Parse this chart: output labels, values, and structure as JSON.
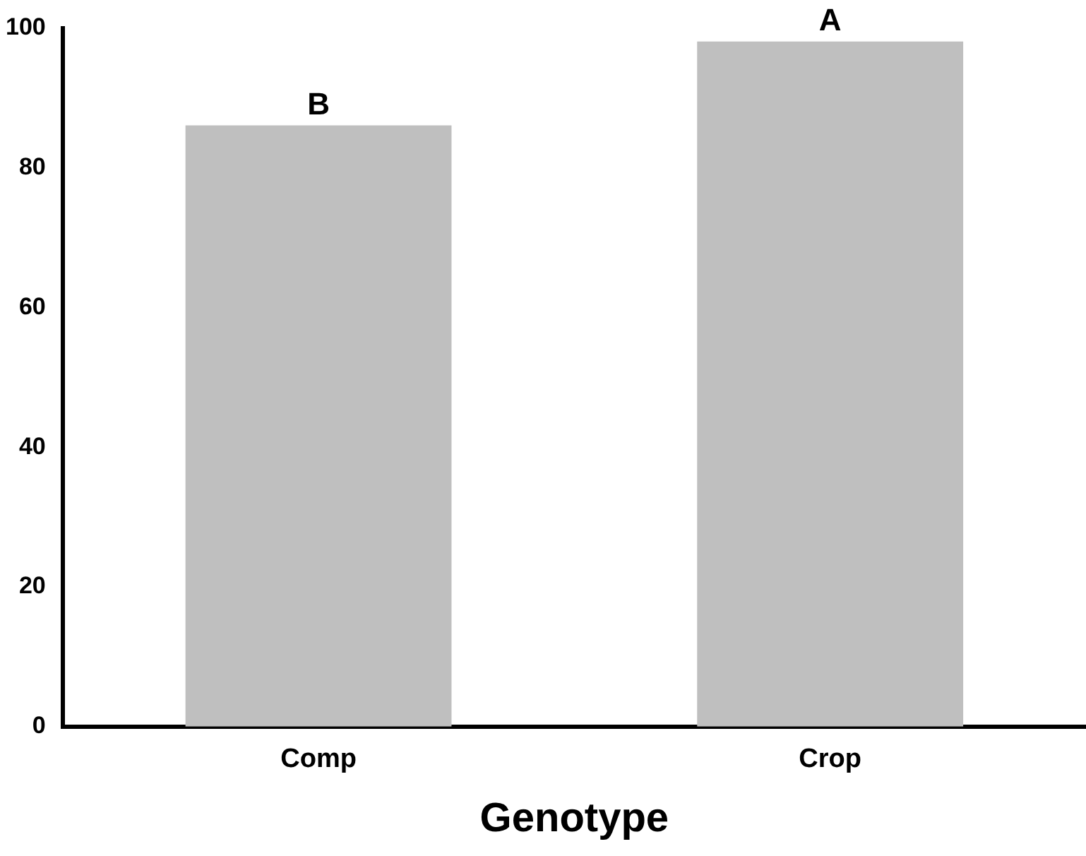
{
  "chart_data": {
    "type": "bar",
    "xlabel": "Genotype",
    "categories": [
      "Comp",
      "Crop"
    ],
    "values": [
      86.1,
      98.1
    ],
    "color": "#bfbfbf",
    "ylim": [
      0,
      100
    ],
    "yticks": [
      0,
      20,
      40,
      60,
      80,
      100
    ],
    "grid": false,
    "legend": false,
    "annotations": [
      {
        "text": "B",
        "x": "Comp",
        "y": 86.1
      },
      {
        "text": "A",
        "x": "Crop",
        "y": 98.1
      }
    ]
  }
}
